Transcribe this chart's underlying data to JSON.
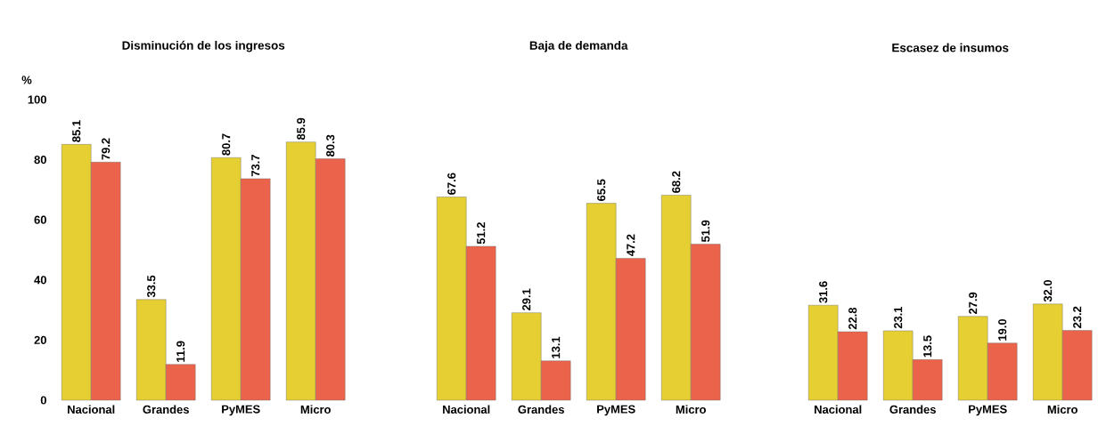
{
  "chart_data": [
    {
      "type": "bar",
      "title": "Disminución de los ingresos",
      "ylabel": "%",
      "categories": [
        "Nacional",
        "Grandes",
        "PyMES",
        "Micro"
      ],
      "series": [
        {
          "color": "#e6cf33",
          "values": [
            85.1,
            33.5,
            80.7,
            85.9
          ]
        },
        {
          "color": "#ec634c",
          "values": [
            79.2,
            11.9,
            73.7,
            80.3
          ]
        }
      ],
      "ylim": [
        0,
        100
      ],
      "yticks": [
        0,
        20,
        40,
        60,
        80,
        100
      ],
      "data_labels": true
    },
    {
      "type": "bar",
      "title": "Baja de demanda",
      "categories": [
        "Nacional",
        "Grandes",
        "PyMES",
        "Micro"
      ],
      "series": [
        {
          "color": "#e6cf33",
          "values": [
            67.6,
            29.1,
            65.5,
            68.2
          ]
        },
        {
          "color": "#ec634c",
          "values": [
            51.2,
            13.1,
            47.2,
            51.9
          ]
        }
      ],
      "ylim": [
        0,
        100
      ],
      "yticks": [
        0,
        20,
        40,
        60,
        80,
        100
      ],
      "data_labels": true,
      "tick_labels": "x"
    },
    {
      "type": "bar",
      "title": "Escasez de insumos",
      "categories": [
        "Nacional",
        "Grandes",
        "PyMES",
        "Micro"
      ],
      "series": [
        {
          "color": "#e6cf33",
          "values": [
            31.6,
            23.1,
            27.9,
            32.0
          ],
          "value_labels": [
            "31.6",
            "23.1",
            "27.9",
            "32.0"
          ]
        },
        {
          "color": "#ec634c",
          "values": [
            22.8,
            13.5,
            19.0,
            23.2
          ],
          "value_labels": [
            "22.8",
            "13.5",
            "19.0",
            "23.2"
          ]
        }
      ],
      "ylim": [
        0,
        100
      ],
      "yticks": [
        0,
        20,
        40,
        60,
        80,
        100
      ],
      "tick_labels": "x"
    }
  ]
}
